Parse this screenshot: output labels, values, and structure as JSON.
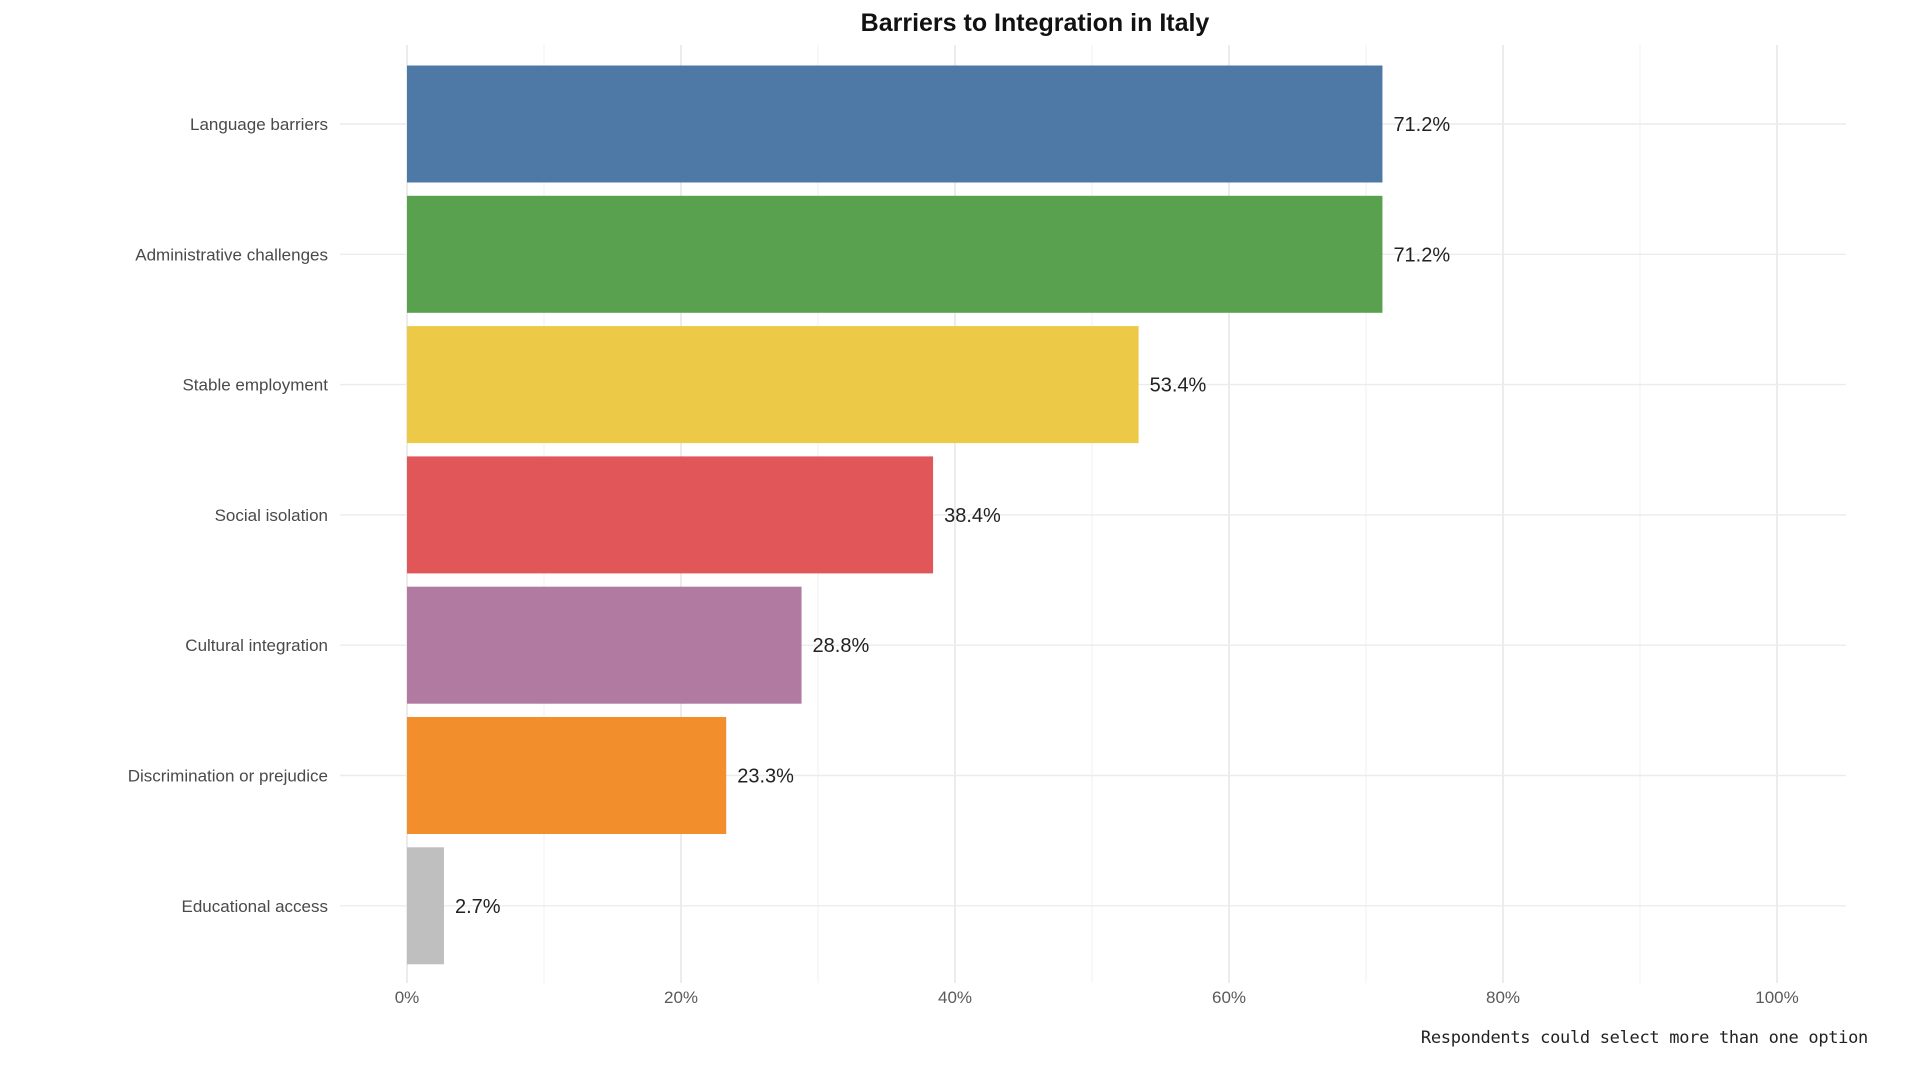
{
  "chart_data": {
    "type": "bar",
    "orientation": "horizontal",
    "title": "Barriers to Integration in Italy",
    "xlabel": "",
    "ylabel": "",
    "xlim": [
      0,
      100
    ],
    "x_ticks": [
      0,
      20,
      40,
      60,
      80,
      100
    ],
    "x_tick_labels": [
      "0%",
      "20%",
      "40%",
      "60%",
      "80%",
      "100%"
    ],
    "grid": true,
    "categories": [
      "Language barriers",
      "Administrative challenges",
      "Stable employment",
      "Social isolation",
      "Cultural integration",
      "Discrimination or prejudice",
      "Educational access"
    ],
    "values": [
      71.2,
      71.2,
      53.4,
      38.4,
      28.8,
      23.3,
      2.7
    ],
    "value_labels": [
      "71.2%",
      "71.2%",
      "53.4%",
      "38.4%",
      "28.8%",
      "23.3%",
      "2.7%"
    ],
    "colors": [
      "#4e79a7",
      "#59a14f",
      "#edc948",
      "#e15759",
      "#b07aa1",
      "#f28e2b",
      "#bfbfbf"
    ],
    "caption": "Respondents could select more than one option"
  }
}
